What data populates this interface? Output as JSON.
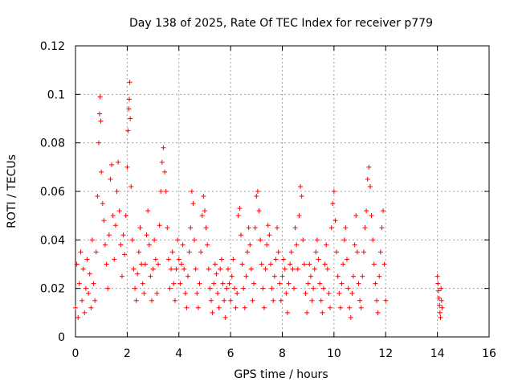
{
  "chart_data": {
    "type": "scatter",
    "title": "Day 138 of 2025, Rate Of TEC Index for receiver p779",
    "xlabel": "GPS time / hours",
    "ylabel": "ROTI / TECUs",
    "xlim": [
      0,
      16
    ],
    "ylim": [
      0,
      0.12
    ],
    "x_ticks": [
      0,
      2,
      4,
      6,
      8,
      10,
      12,
      14,
      16
    ],
    "x_tick_labels": [
      "0",
      "2",
      "4",
      "6",
      "8",
      "10",
      "12",
      "14",
      "16"
    ],
    "y_ticks": [
      0,
      0.02,
      0.04,
      0.06,
      0.08,
      0.1,
      0.12
    ],
    "y_tick_labels": [
      "0",
      "0.02",
      "0.04",
      "0.06",
      "0.08",
      "0.1",
      "0.12"
    ],
    "grid": true,
    "marker": "+",
    "series": [
      {
        "name": "ROTI",
        "color": "#ff0000",
        "points": [
          [
            0.0,
            0.012
          ],
          [
            0.05,
            0.03
          ],
          [
            0.1,
            0.008
          ],
          [
            0.15,
            0.022
          ],
          [
            0.2,
            0.035
          ],
          [
            0.25,
            0.015
          ],
          [
            0.3,
            0.028
          ],
          [
            0.35,
            0.01
          ],
          [
            0.4,
            0.02
          ],
          [
            0.45,
            0.032
          ],
          [
            0.5,
            0.018
          ],
          [
            0.55,
            0.026
          ],
          [
            0.6,
            0.012
          ],
          [
            0.65,
            0.04
          ],
          [
            0.7,
            0.022
          ],
          [
            0.75,
            0.015
          ],
          [
            0.8,
            0.035
          ],
          [
            0.85,
            0.058
          ],
          [
            0.9,
            0.08
          ],
          [
            0.93,
            0.092
          ],
          [
            0.95,
            0.099
          ],
          [
            0.98,
            0.089
          ],
          [
            1.0,
            0.068
          ],
          [
            1.05,
            0.055
          ],
          [
            1.1,
            0.048
          ],
          [
            1.15,
            0.038
          ],
          [
            1.2,
            0.03
          ],
          [
            1.25,
            0.02
          ],
          [
            1.3,
            0.042
          ],
          [
            1.35,
            0.065
          ],
          [
            1.4,
            0.071
          ],
          [
            1.45,
            0.05
          ],
          [
            1.5,
            0.032
          ],
          [
            1.55,
            0.046
          ],
          [
            1.6,
            0.06
          ],
          [
            1.65,
            0.072
          ],
          [
            1.7,
            0.052
          ],
          [
            1.75,
            0.038
          ],
          [
            1.8,
            0.025
          ],
          [
            1.85,
            0.042
          ],
          [
            1.9,
            0.034
          ],
          [
            1.95,
            0.05
          ],
          [
            2.0,
            0.07
          ],
          [
            2.03,
            0.085
          ],
          [
            2.06,
            0.094
          ],
          [
            2.08,
            0.098
          ],
          [
            2.1,
            0.105
          ],
          [
            2.12,
            0.09
          ],
          [
            2.15,
            0.062
          ],
          [
            2.2,
            0.04
          ],
          [
            2.25,
            0.028
          ],
          [
            2.3,
            0.02
          ],
          [
            2.35,
            0.015
          ],
          [
            2.4,
            0.026
          ],
          [
            2.45,
            0.035
          ],
          [
            2.5,
            0.045
          ],
          [
            2.55,
            0.03
          ],
          [
            2.6,
            0.022
          ],
          [
            2.65,
            0.018
          ],
          [
            2.7,
            0.03
          ],
          [
            2.75,
            0.042
          ],
          [
            2.8,
            0.052
          ],
          [
            2.85,
            0.038
          ],
          [
            2.9,
            0.025
          ],
          [
            2.95,
            0.015
          ],
          [
            3.0,
            0.028
          ],
          [
            3.05,
            0.04
          ],
          [
            3.1,
            0.032
          ],
          [
            3.15,
            0.018
          ],
          [
            3.2,
            0.03
          ],
          [
            3.25,
            0.046
          ],
          [
            3.3,
            0.06
          ],
          [
            3.35,
            0.072
          ],
          [
            3.4,
            0.078
          ],
          [
            3.45,
            0.068
          ],
          [
            3.5,
            0.06
          ],
          [
            3.55,
            0.045
          ],
          [
            3.6,
            0.032
          ],
          [
            3.65,
            0.02
          ],
          [
            3.7,
            0.028
          ],
          [
            3.75,
            0.035
          ],
          [
            3.8,
            0.022
          ],
          [
            3.85,
            0.015
          ],
          [
            3.9,
            0.028
          ],
          [
            3.95,
            0.04
          ],
          [
            4.0,
            0.032
          ],
          [
            4.05,
            0.022
          ],
          [
            4.1,
            0.03
          ],
          [
            4.15,
            0.038
          ],
          [
            4.2,
            0.028
          ],
          [
            4.25,
            0.018
          ],
          [
            4.3,
            0.012
          ],
          [
            4.35,
            0.025
          ],
          [
            4.4,
            0.035
          ],
          [
            4.45,
            0.045
          ],
          [
            4.5,
            0.06
          ],
          [
            4.55,
            0.055
          ],
          [
            4.6,
            0.04
          ],
          [
            4.65,
            0.028
          ],
          [
            4.7,
            0.018
          ],
          [
            4.75,
            0.012
          ],
          [
            4.8,
            0.022
          ],
          [
            4.85,
            0.035
          ],
          [
            4.9,
            0.05
          ],
          [
            4.95,
            0.058
          ],
          [
            5.0,
            0.052
          ],
          [
            5.05,
            0.045
          ],
          [
            5.1,
            0.038
          ],
          [
            5.15,
            0.028
          ],
          [
            5.2,
            0.02
          ],
          [
            5.25,
            0.015
          ],
          [
            5.3,
            0.01
          ],
          [
            5.35,
            0.022
          ],
          [
            5.4,
            0.03
          ],
          [
            5.45,
            0.026
          ],
          [
            5.5,
            0.018
          ],
          [
            5.55,
            0.012
          ],
          [
            5.6,
            0.028
          ],
          [
            5.65,
            0.032
          ],
          [
            5.7,
            0.022
          ],
          [
            5.75,
            0.015
          ],
          [
            5.8,
            0.008
          ],
          [
            5.85,
            0.02
          ],
          [
            5.9,
            0.028
          ],
          [
            5.95,
            0.022
          ],
          [
            6.0,
            0.015
          ],
          [
            6.05,
            0.025
          ],
          [
            6.1,
            0.032
          ],
          [
            6.15,
            0.02
          ],
          [
            6.2,
            0.012
          ],
          [
            6.25,
            0.018
          ],
          [
            6.3,
            0.05
          ],
          [
            6.35,
            0.053
          ],
          [
            6.4,
            0.042
          ],
          [
            6.45,
            0.03
          ],
          [
            6.5,
            0.02
          ],
          [
            6.55,
            0.012
          ],
          [
            6.6,
            0.025
          ],
          [
            6.65,
            0.035
          ],
          [
            6.7,
            0.045
          ],
          [
            6.75,
            0.038
          ],
          [
            6.8,
            0.028
          ],
          [
            6.85,
            0.015
          ],
          [
            6.9,
            0.022
          ],
          [
            6.95,
            0.045
          ],
          [
            7.0,
            0.058
          ],
          [
            7.05,
            0.06
          ],
          [
            7.1,
            0.052
          ],
          [
            7.15,
            0.04
          ],
          [
            7.2,
            0.03
          ],
          [
            7.25,
            0.02
          ],
          [
            7.3,
            0.012
          ],
          [
            7.35,
            0.028
          ],
          [
            7.4,
            0.038
          ],
          [
            7.45,
            0.046
          ],
          [
            7.5,
            0.042
          ],
          [
            7.55,
            0.03
          ],
          [
            7.6,
            0.02
          ],
          [
            7.65,
            0.015
          ],
          [
            7.7,
            0.025
          ],
          [
            7.75,
            0.032
          ],
          [
            7.8,
            0.045
          ],
          [
            7.85,
            0.035
          ],
          [
            7.9,
            0.022
          ],
          [
            7.95,
            0.015
          ],
          [
            8.0,
            0.025
          ],
          [
            8.05,
            0.032
          ],
          [
            8.1,
            0.028
          ],
          [
            8.15,
            0.018
          ],
          [
            8.2,
            0.01
          ],
          [
            8.25,
            0.022
          ],
          [
            8.3,
            0.03
          ],
          [
            8.35,
            0.035
          ],
          [
            8.4,
            0.028
          ],
          [
            8.45,
            0.02
          ],
          [
            8.5,
            0.045
          ],
          [
            8.55,
            0.038
          ],
          [
            8.6,
            0.028
          ],
          [
            8.65,
            0.05
          ],
          [
            8.7,
            0.062
          ],
          [
            8.75,
            0.058
          ],
          [
            8.8,
            0.04
          ],
          [
            8.85,
            0.03
          ],
          [
            8.9,
            0.018
          ],
          [
            8.95,
            0.01
          ],
          [
            9.0,
            0.022
          ],
          [
            9.05,
            0.03
          ],
          [
            9.1,
            0.025
          ],
          [
            9.15,
            0.015
          ],
          [
            9.2,
            0.02
          ],
          [
            9.25,
            0.028
          ],
          [
            9.3,
            0.035
          ],
          [
            9.35,
            0.04
          ],
          [
            9.4,
            0.032
          ],
          [
            9.45,
            0.022
          ],
          [
            9.5,
            0.015
          ],
          [
            9.55,
            0.01
          ],
          [
            9.6,
            0.02
          ],
          [
            9.65,
            0.03
          ],
          [
            9.7,
            0.038
          ],
          [
            9.75,
            0.028
          ],
          [
            9.8,
            0.018
          ],
          [
            9.85,
            0.012
          ],
          [
            9.9,
            0.045
          ],
          [
            9.95,
            0.055
          ],
          [
            10.0,
            0.06
          ],
          [
            10.05,
            0.048
          ],
          [
            10.1,
            0.035
          ],
          [
            10.15,
            0.025
          ],
          [
            10.2,
            0.018
          ],
          [
            10.25,
            0.012
          ],
          [
            10.3,
            0.022
          ],
          [
            10.35,
            0.03
          ],
          [
            10.4,
            0.04
          ],
          [
            10.45,
            0.045
          ],
          [
            10.5,
            0.032
          ],
          [
            10.55,
            0.02
          ],
          [
            10.6,
            0.012
          ],
          [
            10.65,
            0.008
          ],
          [
            10.7,
            0.018
          ],
          [
            10.75,
            0.025
          ],
          [
            10.8,
            0.038
          ],
          [
            10.85,
            0.05
          ],
          [
            10.9,
            0.035
          ],
          [
            10.95,
            0.022
          ],
          [
            11.0,
            0.015
          ],
          [
            11.05,
            0.012
          ],
          [
            11.1,
            0.025
          ],
          [
            11.15,
            0.035
          ],
          [
            11.2,
            0.045
          ],
          [
            11.25,
            0.052
          ],
          [
            11.3,
            0.065
          ],
          [
            11.35,
            0.07
          ],
          [
            11.4,
            0.062
          ],
          [
            11.45,
            0.05
          ],
          [
            11.5,
            0.04
          ],
          [
            11.55,
            0.03
          ],
          [
            11.6,
            0.022
          ],
          [
            11.65,
            0.015
          ],
          [
            11.7,
            0.01
          ],
          [
            11.75,
            0.025
          ],
          [
            11.8,
            0.035
          ],
          [
            11.85,
            0.045
          ],
          [
            11.9,
            0.052
          ],
          [
            11.95,
            0.03
          ],
          [
            12.0,
            0.015
          ],
          [
            14.0,
            0.025
          ],
          [
            14.02,
            0.022
          ],
          [
            14.04,
            0.019
          ],
          [
            14.06,
            0.016
          ],
          [
            14.08,
            0.013
          ],
          [
            14.1,
            0.01
          ],
          [
            14.12,
            0.008
          ],
          [
            14.14,
            0.02
          ],
          [
            14.16,
            0.015
          ],
          [
            14.18,
            0.012
          ]
        ]
      }
    ]
  }
}
